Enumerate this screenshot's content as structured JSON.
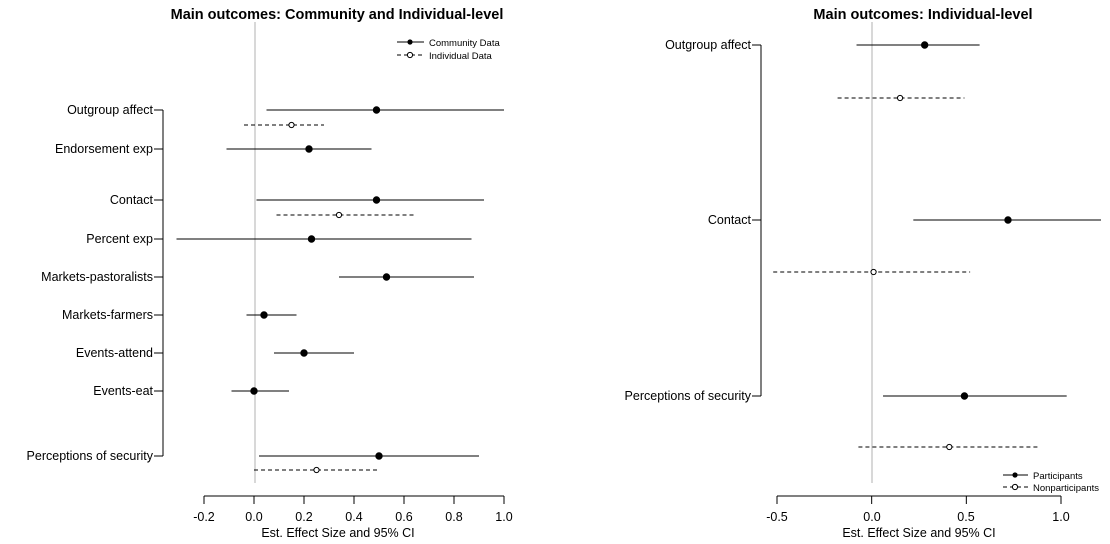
{
  "chart_data": [
    {
      "type": "forest",
      "title": "Main outcomes: Community and Individual-level",
      "xlabel": "Est. Effect Size and 95% CI",
      "xlim": [
        -0.2,
        1.0
      ],
      "xticks": [
        "-0.2",
        "0.0",
        "0.2",
        "0.4",
        "0.6",
        "0.8",
        "1.0"
      ],
      "reference_line_x": 0,
      "legend": {
        "placement": "top-right",
        "entries": [
          {
            "label": "Community Data",
            "style": "solid",
            "marker": "filled"
          },
          {
            "label": "Individual Data",
            "style": "dashed",
            "marker": "open"
          }
        ]
      },
      "categories": [
        "Outgroup affect",
        "Endorsement exp",
        "Contact",
        "Percent exp",
        "Markets-pastoralists",
        "Markets-farmers",
        "Events-attend",
        "Events-eat",
        "Perceptions of security"
      ],
      "series": [
        {
          "name": "Community Data",
          "points": [
            {
              "category": "Outgroup affect",
              "estimate": 0.49,
              "lower": 0.05,
              "upper": 1.0
            },
            {
              "category": "Endorsement exp",
              "estimate": 0.22,
              "lower": -0.11,
              "upper": 0.47
            },
            {
              "category": "Contact",
              "estimate": 0.49,
              "lower": 0.01,
              "upper": 0.92
            },
            {
              "category": "Percent exp",
              "estimate": 0.23,
              "lower": -0.31,
              "upper": 0.87
            },
            {
              "category": "Markets-pastoralists",
              "estimate": 0.53,
              "lower": 0.34,
              "upper": 0.88
            },
            {
              "category": "Markets-farmers",
              "estimate": 0.04,
              "lower": -0.03,
              "upper": 0.17
            },
            {
              "category": "Events-attend",
              "estimate": 0.2,
              "lower": 0.08,
              "upper": 0.4
            },
            {
              "category": "Events-eat",
              "estimate": 0.0,
              "lower": -0.09,
              "upper": 0.14
            },
            {
              "category": "Perceptions of security",
              "estimate": 0.5,
              "lower": 0.02,
              "upper": 0.9
            }
          ]
        },
        {
          "name": "Individual Data",
          "points": [
            {
              "category": "Outgroup affect",
              "estimate": 0.15,
              "lower": -0.04,
              "upper": 0.28
            },
            {
              "category": "Contact",
              "estimate": 0.34,
              "lower": 0.09,
              "upper": 0.64
            },
            {
              "category": "Perceptions of security",
              "estimate": 0.25,
              "lower": 0.0,
              "upper": 0.5
            }
          ]
        }
      ]
    },
    {
      "type": "forest",
      "title": "Main outcomes: Individual-level",
      "xlabel": "Est. Effect Size and 95% CI",
      "xlim": [
        -0.5,
        1.0
      ],
      "xticks": [
        "-0.5",
        "0.0",
        "0.5",
        "1.0"
      ],
      "reference_line_x": 0,
      "legend": {
        "placement": "bottom-right",
        "entries": [
          {
            "label": "Participants",
            "style": "solid",
            "marker": "filled"
          },
          {
            "label": "Nonparticipants",
            "style": "dashed",
            "marker": "open"
          }
        ]
      },
      "categories": [
        "Outgroup affect",
        "Contact",
        "Perceptions of security"
      ],
      "series": [
        {
          "name": "Participants",
          "points": [
            {
              "category": "Outgroup affect",
              "estimate": 0.28,
              "lower": -0.08,
              "upper": 0.57
            },
            {
              "category": "Contact",
              "estimate": 0.72,
              "lower": 0.22,
              "upper": 1.22
            },
            {
              "category": "Perceptions of security",
              "estimate": 0.49,
              "lower": 0.06,
              "upper": 1.03
            }
          ]
        },
        {
          "name": "Nonparticipants",
          "points": [
            {
              "category": "Outgroup affect",
              "estimate": 0.15,
              "lower": -0.18,
              "upper": 0.49
            },
            {
              "category": "Contact",
              "estimate": 0.01,
              "lower": -0.52,
              "upper": 0.52
            },
            {
              "category": "Perceptions of security",
              "estimate": 0.41,
              "lower": -0.07,
              "upper": 0.89
            }
          ]
        }
      ]
    }
  ]
}
